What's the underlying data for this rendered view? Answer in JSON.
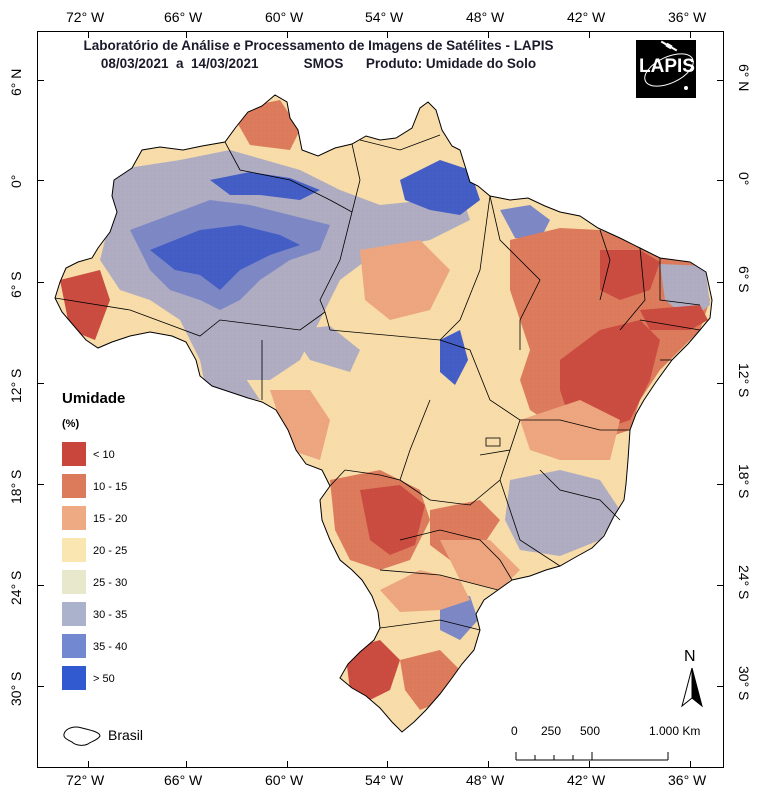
{
  "title": {
    "line1": "Laboratório de Análise e Processamento de Imagens de Satélites - LAPIS",
    "line2_dates": "08/03/2021  a  14/03/2021",
    "line2_sensor": "SMOS",
    "line2_product": "Produto: Umidade do Solo"
  },
  "logo_text": "LAPIS",
  "longitude_labels": [
    "72° W",
    "66° W",
    "60° W",
    "54° W",
    "48° W",
    "42° W",
    "36° W"
  ],
  "latitude_labels": [
    "6° N",
    "0°",
    "6° S",
    "12° S",
    "18° S",
    "24° S",
    "30° S"
  ],
  "legend": {
    "title": "Umidade",
    "unit": "(%)",
    "classes": [
      {
        "label": "< 10",
        "color": "#c8463c"
      },
      {
        "label": "10 - 15",
        "color": "#dc7a5c"
      },
      {
        "label": "15 - 20",
        "color": "#eeaa82"
      },
      {
        "label": "20 - 25",
        "color": "#fae6b0"
      },
      {
        "label": "25 - 30",
        "color": "#e8e8cc"
      },
      {
        "label": "30 - 35",
        "color": "#aab2cc"
      },
      {
        "label": "35 - 40",
        "color": "#7288d0"
      },
      {
        "label": "> 50",
        "color": "#325ad0"
      }
    ]
  },
  "outline_legend_label": "Brasil",
  "scale_bar": {
    "ticks": [
      "0",
      "250",
      "500",
      "1.000 Km"
    ]
  },
  "north_label": "N"
}
